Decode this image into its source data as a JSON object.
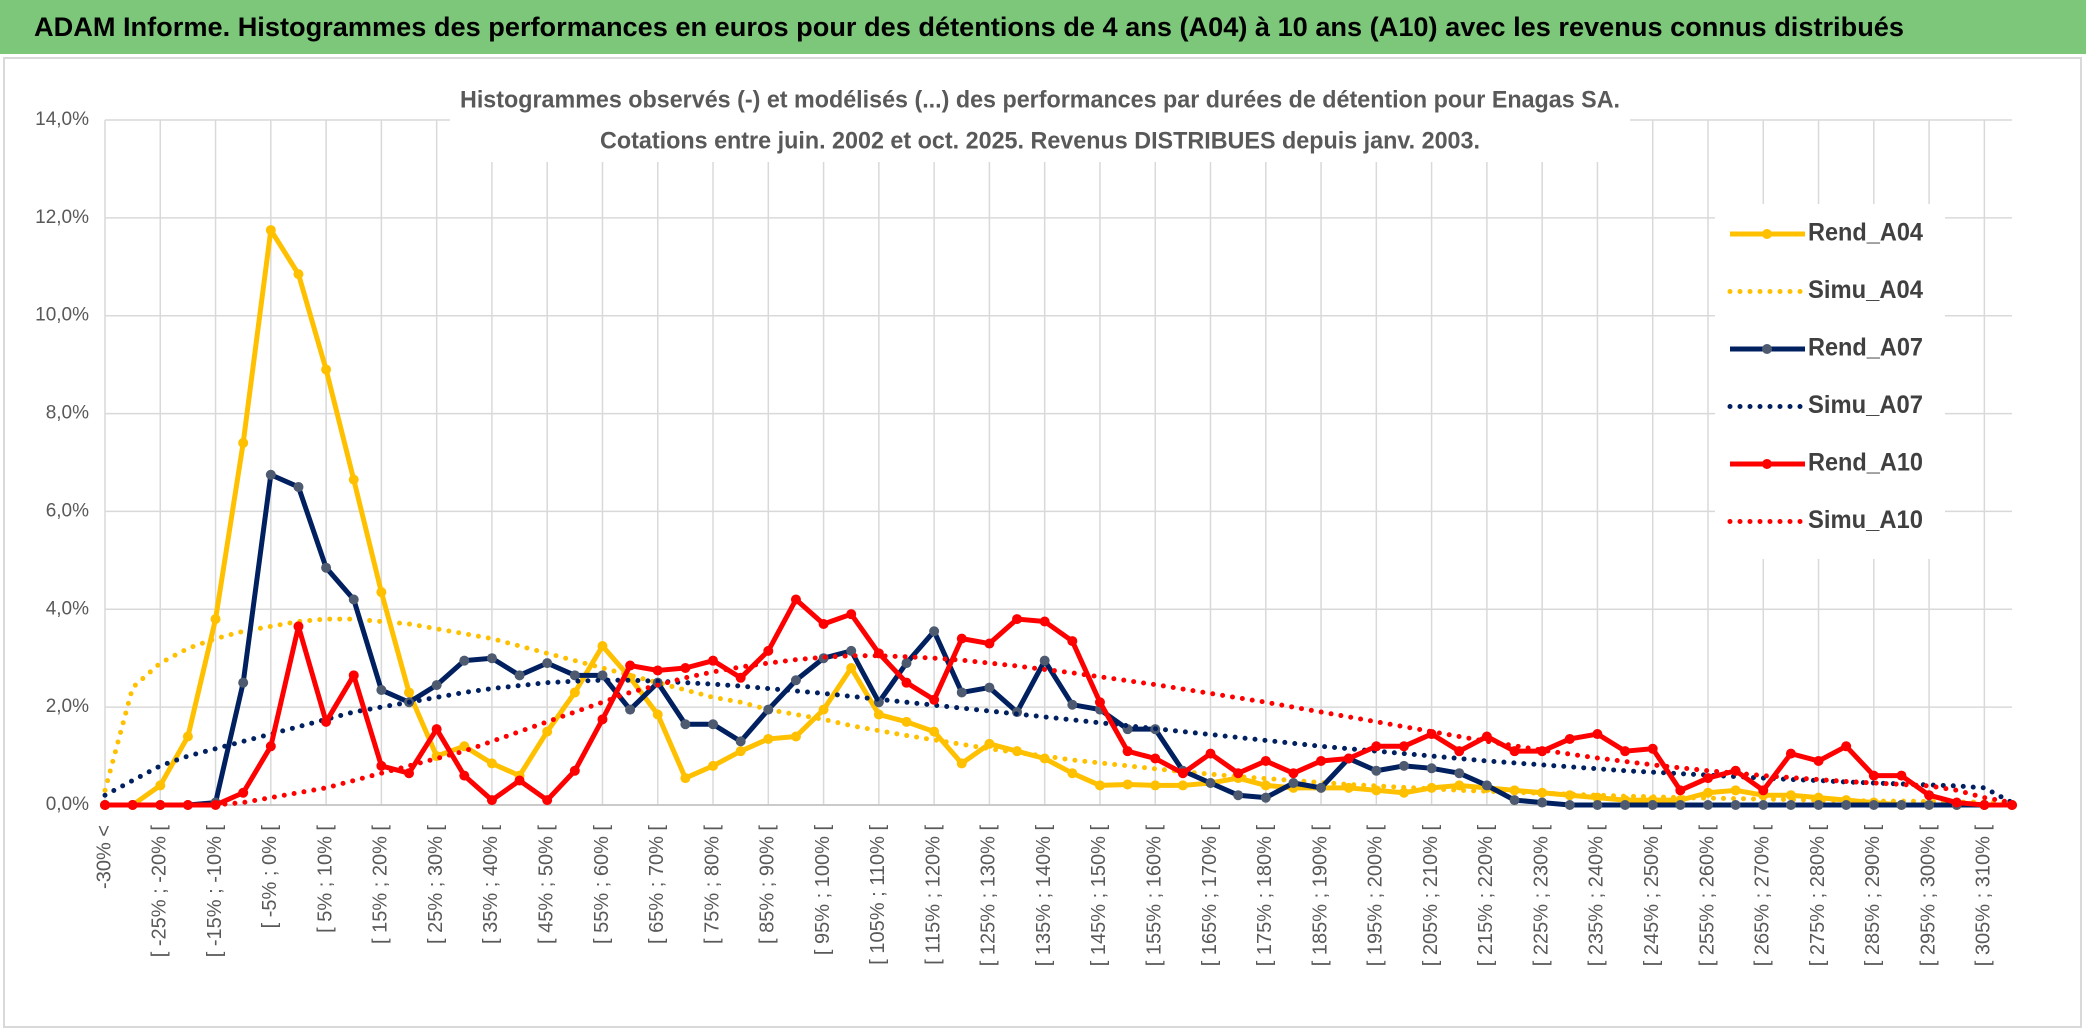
{
  "header": {
    "title": "ADAM Informe. Histogrammes des performances en euros pour des détentions de 4 ans (A04) à 10 ans (A10) avec les revenus connus distribués"
  },
  "chart_data": {
    "type": "line",
    "title": [
      "Histogrammes observés (-) et modélisés (...) des performances par durées de détention pour Enagas SA.",
      "Cotations entre juin. 2002 et oct. 2025. Revenus DISTRIBUES depuis janv. 2003."
    ],
    "categories": [
      "-30% <",
      null,
      "[ -25% ; -20% [",
      null,
      "[ -15% ; -10% [",
      null,
      "[ -5% ; 0% [",
      null,
      "[ 5% ; 10% [",
      null,
      "[ 15% ; 20% [",
      null,
      "[ 25% ; 30% [",
      null,
      "[ 35% ; 40% [",
      null,
      "[ 45% ; 50% [",
      null,
      "[ 55% ; 60% [",
      null,
      "[ 65% ; 70% [",
      null,
      "[ 75% ; 80% [",
      null,
      "[ 85% ; 90% [",
      null,
      "[ 95% ; 100% [",
      null,
      "[ 105% ; 110% [",
      null,
      "[ 115% ; 120% [",
      null,
      "[ 125% ; 130% [",
      null,
      "[ 135% ; 140% [",
      null,
      "[ 145% ; 150% [",
      null,
      "[ 155% ; 160% [",
      null,
      "[ 165% ; 170% [",
      null,
      "[ 175% ; 180% [",
      null,
      "[ 185% ; 190% [",
      null,
      "[ 195% ; 200% [",
      null,
      "[ 205% ; 210% [",
      null,
      "[ 215% ; 220% [",
      null,
      "[ 225% ; 230% [",
      null,
      "[ 235% ; 240% [",
      null,
      "[ 245% ; 250% [",
      null,
      "[ 255% ; 260% [",
      null,
      "[ 265% ; 270% [",
      null,
      "[ 275% ; 280% [",
      null,
      "[ 285% ; 290% [",
      null,
      "[ 295% ; 300% [",
      null,
      "[ 305% ; 310% [",
      null
    ],
    "series": [
      {
        "name": "Rend_A04",
        "color": "#ffc000",
        "line_style": "solid",
        "markers": true,
        "values": [
          0,
          0,
          0.4,
          1.4,
          3.8,
          7.4,
          11.75,
          10.85,
          8.9,
          6.65,
          4.35,
          2.3,
          1.0,
          1.2,
          0.85,
          0.6,
          1.5,
          2.3,
          3.25,
          2.6,
          1.85,
          0.55,
          0.8,
          1.1,
          1.35,
          1.4,
          1.95,
          2.8,
          1.85,
          1.7,
          1.5,
          0.85,
          1.25,
          1.1,
          0.95,
          0.65,
          0.4,
          0.42,
          0.4,
          0.4,
          0.45,
          0.55,
          0.4,
          0.35,
          0.35,
          0.35,
          0.3,
          0.25,
          0.35,
          0.4,
          0.35,
          0.3,
          0.25,
          0.2,
          0.15,
          0.1,
          0.1,
          0.1,
          0.25,
          0.3,
          0.2,
          0.2,
          0.15,
          0.1,
          0.05,
          0,
          0,
          0,
          0,
          0
        ]
      },
      {
        "name": "Simu_A04",
        "color": "#ffc000",
        "line_style": "dotted",
        "markers": false,
        "values": [
          0.3,
          2.4,
          2.9,
          3.2,
          3.4,
          3.55,
          3.65,
          3.75,
          3.8,
          3.8,
          3.75,
          3.7,
          3.6,
          3.5,
          3.4,
          3.25,
          3.1,
          2.95,
          2.8,
          2.65,
          2.5,
          2.35,
          2.2,
          2.1,
          1.95,
          1.85,
          1.75,
          1.62,
          1.52,
          1.42,
          1.33,
          1.24,
          1.15,
          1.07,
          1.0,
          0.92,
          0.86,
          0.8,
          0.74,
          0.68,
          0.63,
          0.58,
          0.54,
          0.5,
          0.46,
          0.42,
          0.39,
          0.36,
          0.33,
          0.3,
          0.28,
          0.26,
          0.24,
          0.22,
          0.2,
          0.18,
          0.17,
          0.15,
          0.14,
          0.13,
          0.12,
          0.11,
          0.1,
          0.09,
          0.08,
          0.08,
          0.07,
          0.06,
          0.06,
          0.05
        ]
      },
      {
        "name": "Rend_A07",
        "color": "#002060",
        "marker_color": "#4d5a70",
        "line_style": "solid",
        "markers": true,
        "values": [
          0,
          0,
          0,
          0,
          0.05,
          2.5,
          6.75,
          6.5,
          4.85,
          4.2,
          2.35,
          2.1,
          2.45,
          2.95,
          3.0,
          2.65,
          2.9,
          2.65,
          2.65,
          1.95,
          2.5,
          1.65,
          1.65,
          1.3,
          1.95,
          2.55,
          3.0,
          3.15,
          2.1,
          2.9,
          3.55,
          2.3,
          2.4,
          1.9,
          2.95,
          2.05,
          1.95,
          1.55,
          1.55,
          0.7,
          0.45,
          0.2,
          0.15,
          0.45,
          0.35,
          0.95,
          0.7,
          0.8,
          0.75,
          0.65,
          0.4,
          0.1,
          0.05,
          0,
          0,
          0,
          0,
          0,
          0,
          0,
          0,
          0,
          0,
          0,
          0,
          0,
          0,
          0,
          0,
          0
        ]
      },
      {
        "name": "Simu_A07",
        "color": "#002060",
        "line_style": "dotted",
        "markers": false,
        "values": [
          0.2,
          0.5,
          0.8,
          1.0,
          1.15,
          1.3,
          1.45,
          1.6,
          1.75,
          1.9,
          2.0,
          2.1,
          2.2,
          2.3,
          2.38,
          2.44,
          2.5,
          2.53,
          2.55,
          2.55,
          2.53,
          2.5,
          2.47,
          2.43,
          2.38,
          2.33,
          2.28,
          2.22,
          2.16,
          2.1,
          2.04,
          1.98,
          1.92,
          1.86,
          1.8,
          1.74,
          1.68,
          1.62,
          1.56,
          1.5,
          1.44,
          1.38,
          1.32,
          1.26,
          1.2,
          1.15,
          1.1,
          1.05,
          1.0,
          0.95,
          0.9,
          0.86,
          0.82,
          0.78,
          0.74,
          0.7,
          0.67,
          0.64,
          0.61,
          0.58,
          0.55,
          0.52,
          0.5,
          0.47,
          0.45,
          0.43,
          0.41,
          0.39,
          0.35,
          0.05
        ]
      },
      {
        "name": "Rend_A10",
        "color": "#ff0000",
        "line_style": "solid",
        "markers": true,
        "values": [
          0,
          0,
          0,
          0,
          0,
          0.25,
          1.2,
          3.65,
          1.7,
          2.65,
          0.8,
          0.65,
          1.55,
          0.6,
          0.1,
          0.5,
          0.1,
          0.7,
          1.75,
          2.85,
          2.75,
          2.8,
          2.95,
          2.6,
          3.15,
          4.2,
          3.7,
          3.9,
          3.1,
          2.5,
          2.15,
          3.4,
          3.3,
          3.8,
          3.75,
          3.35,
          2.1,
          1.1,
          0.95,
          0.65,
          1.05,
          0.65,
          0.9,
          0.65,
          0.9,
          0.95,
          1.2,
          1.2,
          1.45,
          1.1,
          1.4,
          1.1,
          1.1,
          1.35,
          1.45,
          1.1,
          1.15,
          0.3,
          0.55,
          0.7,
          0.3,
          1.05,
          0.9,
          1.2,
          0.6,
          0.6,
          0.2,
          0.05,
          0,
          0
        ]
      },
      {
        "name": "Simu_A10",
        "color": "#ff0000",
        "line_style": "dotted",
        "markers": false,
        "values": [
          0,
          0,
          0,
          0,
          0,
          0.05,
          0.15,
          0.25,
          0.35,
          0.5,
          0.65,
          0.8,
          0.95,
          1.1,
          1.3,
          1.5,
          1.7,
          1.9,
          2.1,
          2.3,
          2.45,
          2.6,
          2.72,
          2.82,
          2.9,
          2.97,
          3.02,
          3.05,
          3.05,
          3.03,
          3.0,
          2.96,
          2.9,
          2.84,
          2.77,
          2.7,
          2.62,
          2.54,
          2.46,
          2.37,
          2.28,
          2.19,
          2.1,
          2.0,
          1.9,
          1.8,
          1.7,
          1.6,
          1.5,
          1.4,
          1.3,
          1.21,
          1.12,
          1.04,
          0.96,
          0.89,
          0.82,
          0.76,
          0.7,
          0.65,
          0.6,
          0.56,
          0.52,
          0.48,
          0.45,
          0.42,
          0.39,
          0.3,
          0.15,
          0.05
        ]
      }
    ],
    "ylim": [
      0,
      14
    ],
    "yticks": [
      {
        "value": 0,
        "label": "0,0%"
      },
      {
        "value": 2,
        "label": "2,0%"
      },
      {
        "value": 4,
        "label": "4,0%"
      },
      {
        "value": 6,
        "label": "6,0%"
      },
      {
        "value": 8,
        "label": "8,0%"
      },
      {
        "value": 10,
        "label": "10,0%"
      },
      {
        "value": 12,
        "label": "12,0%"
      },
      {
        "value": 14,
        "label": "14,0%"
      }
    ],
    "grid": true,
    "legend": "right"
  }
}
